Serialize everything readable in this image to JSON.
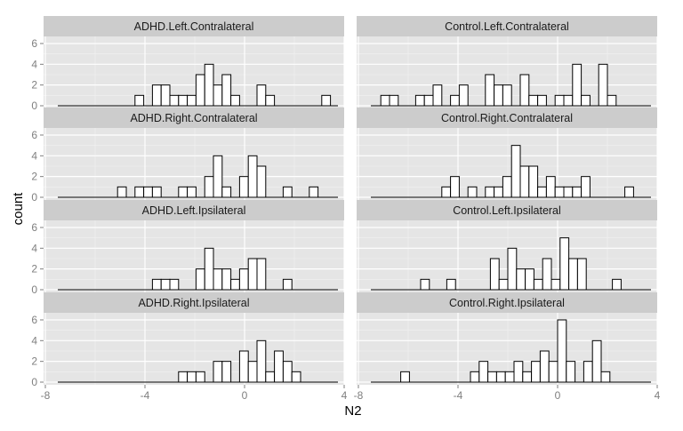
{
  "chart_data": {
    "type": "histogram",
    "facet_layout": "4 rows x 2 columns",
    "xlabel": "N2",
    "ylabel": "count",
    "xlim": [
      -8,
      4
    ],
    "ylim": [
      0,
      6
    ],
    "bin_width": 0.35,
    "x_ticks": [
      -8,
      -4,
      0,
      4
    ],
    "x_tick_labels": [
      "-8",
      "-4",
      "0",
      "4"
    ],
    "y_ticks": [
      0,
      2,
      4,
      6
    ],
    "y_tick_labels": [
      "0",
      "2",
      "4",
      "6"
    ],
    "baseline_range": [
      -7.5,
      3.75
    ],
    "grid": true,
    "legend": "none",
    "colors": {
      "panel_bg": "#e5e5e5",
      "strip_bg": "#cccccc",
      "bar_fill": "#ffffff",
      "bar_stroke": "#000000"
    },
    "panels": [
      {
        "title": "ADHD.Left.Contralateral",
        "bins": [
          {
            "x0": -4.4,
            "count": 1
          },
          {
            "x0": -3.7,
            "count": 2
          },
          {
            "x0": -3.35,
            "count": 2
          },
          {
            "x0": -3.0,
            "count": 1
          },
          {
            "x0": -2.65,
            "count": 1
          },
          {
            "x0": -2.3,
            "count": 1
          },
          {
            "x0": -1.95,
            "count": 3
          },
          {
            "x0": -1.6,
            "count": 4
          },
          {
            "x0": -1.25,
            "count": 2
          },
          {
            "x0": -0.9,
            "count": 3
          },
          {
            "x0": -0.55,
            "count": 1
          },
          {
            "x0": 0.5,
            "count": 2
          },
          {
            "x0": 0.85,
            "count": 1
          },
          {
            "x0": 3.1,
            "count": 1
          }
        ]
      },
      {
        "title": "Control.Left.Contralateral",
        "bins": [
          {
            "x0": -7.1,
            "count": 1
          },
          {
            "x0": -6.75,
            "count": 1
          },
          {
            "x0": -5.7,
            "count": 1
          },
          {
            "x0": -5.35,
            "count": 1
          },
          {
            "x0": -5.0,
            "count": 2
          },
          {
            "x0": -4.3,
            "count": 1
          },
          {
            "x0": -3.95,
            "count": 2
          },
          {
            "x0": -2.9,
            "count": 3
          },
          {
            "x0": -2.55,
            "count": 2
          },
          {
            "x0": -2.2,
            "count": 2
          },
          {
            "x0": -1.5,
            "count": 3
          },
          {
            "x0": -1.15,
            "count": 1
          },
          {
            "x0": -0.8,
            "count": 1
          },
          {
            "x0": -0.1,
            "count": 1
          },
          {
            "x0": 0.25,
            "count": 1
          },
          {
            "x0": 0.6,
            "count": 4
          },
          {
            "x0": 0.95,
            "count": 1
          },
          {
            "x0": 1.65,
            "count": 4
          },
          {
            "x0": 2.0,
            "count": 1
          }
        ]
      },
      {
        "title": "ADHD.Right.Contralateral",
        "bins": [
          {
            "x0": -5.1,
            "count": 1
          },
          {
            "x0": -4.4,
            "count": 1
          },
          {
            "x0": -4.05,
            "count": 1
          },
          {
            "x0": -3.7,
            "count": 1
          },
          {
            "x0": -2.65,
            "count": 1
          },
          {
            "x0": -2.3,
            "count": 1
          },
          {
            "x0": -1.6,
            "count": 2
          },
          {
            "x0": -1.25,
            "count": 4
          },
          {
            "x0": -0.9,
            "count": 1
          },
          {
            "x0": -0.2,
            "count": 2
          },
          {
            "x0": 0.15,
            "count": 4
          },
          {
            "x0": 0.5,
            "count": 3
          },
          {
            "x0": 1.55,
            "count": 1
          },
          {
            "x0": 2.6,
            "count": 1
          }
        ]
      },
      {
        "title": "Control.Right.Contralateral",
        "bins": [
          {
            "x0": -4.65,
            "count": 1
          },
          {
            "x0": -4.3,
            "count": 2
          },
          {
            "x0": -3.6,
            "count": 1
          },
          {
            "x0": -2.9,
            "count": 1
          },
          {
            "x0": -2.55,
            "count": 1
          },
          {
            "x0": -2.2,
            "count": 2
          },
          {
            "x0": -1.85,
            "count": 5
          },
          {
            "x0": -1.5,
            "count": 3
          },
          {
            "x0": -1.15,
            "count": 3
          },
          {
            "x0": -0.8,
            "count": 1
          },
          {
            "x0": -0.45,
            "count": 2
          },
          {
            "x0": -0.1,
            "count": 1
          },
          {
            "x0": 0.25,
            "count": 1
          },
          {
            "x0": 0.6,
            "count": 1
          },
          {
            "x0": 0.95,
            "count": 2
          },
          {
            "x0": 2.7,
            "count": 1
          }
        ]
      },
      {
        "title": "ADHD.Left.Ipsilateral",
        "bins": [
          {
            "x0": -3.7,
            "count": 1
          },
          {
            "x0": -3.35,
            "count": 1
          },
          {
            "x0": -3.0,
            "count": 1
          },
          {
            "x0": -1.95,
            "count": 2
          },
          {
            "x0": -1.6,
            "count": 4
          },
          {
            "x0": -1.25,
            "count": 2
          },
          {
            "x0": -0.9,
            "count": 2
          },
          {
            "x0": -0.55,
            "count": 1
          },
          {
            "x0": -0.2,
            "count": 2
          },
          {
            "x0": 0.15,
            "count": 3
          },
          {
            "x0": 0.5,
            "count": 3
          },
          {
            "x0": 1.55,
            "count": 1
          }
        ]
      },
      {
        "title": "Control.Left.Ipsilateral",
        "bins": [
          {
            "x0": -5.5,
            "count": 1
          },
          {
            "x0": -4.45,
            "count": 1
          },
          {
            "x0": -2.7,
            "count": 3
          },
          {
            "x0": -2.35,
            "count": 1
          },
          {
            "x0": -2.0,
            "count": 4
          },
          {
            "x0": -1.65,
            "count": 2
          },
          {
            "x0": -1.3,
            "count": 2
          },
          {
            "x0": -0.95,
            "count": 1
          },
          {
            "x0": -0.6,
            "count": 3
          },
          {
            "x0": -0.25,
            "count": 1
          },
          {
            "x0": 0.1,
            "count": 5
          },
          {
            "x0": 0.45,
            "count": 3
          },
          {
            "x0": 0.8,
            "count": 3
          },
          {
            "x0": 2.2,
            "count": 1
          }
        ]
      },
      {
        "title": "ADHD.Right.Ipsilateral",
        "bins": [
          {
            "x0": -2.65,
            "count": 1
          },
          {
            "x0": -2.3,
            "count": 1
          },
          {
            "x0": -1.95,
            "count": 1
          },
          {
            "x0": -1.25,
            "count": 2
          },
          {
            "x0": -0.9,
            "count": 2
          },
          {
            "x0": -0.2,
            "count": 3
          },
          {
            "x0": 0.15,
            "count": 2
          },
          {
            "x0": 0.5,
            "count": 4
          },
          {
            "x0": 0.85,
            "count": 1
          },
          {
            "x0": 1.2,
            "count": 3
          },
          {
            "x0": 1.55,
            "count": 2
          },
          {
            "x0": 1.9,
            "count": 1
          }
        ]
      },
      {
        "title": "Control.Right.Ipsilateral",
        "bins": [
          {
            "x0": -6.3,
            "count": 1
          },
          {
            "x0": -3.5,
            "count": 1
          },
          {
            "x0": -3.15,
            "count": 2
          },
          {
            "x0": -2.8,
            "count": 1
          },
          {
            "x0": -2.45,
            "count": 1
          },
          {
            "x0": -2.1,
            "count": 1
          },
          {
            "x0": -1.75,
            "count": 2
          },
          {
            "x0": -1.4,
            "count": 1
          },
          {
            "x0": -1.05,
            "count": 2
          },
          {
            "x0": -0.7,
            "count": 3
          },
          {
            "x0": -0.35,
            "count": 2
          },
          {
            "x0": 0.0,
            "count": 6
          },
          {
            "x0": 0.35,
            "count": 2
          },
          {
            "x0": 1.05,
            "count": 2
          },
          {
            "x0": 1.4,
            "count": 4
          },
          {
            "x0": 1.75,
            "count": 1
          }
        ]
      }
    ]
  }
}
